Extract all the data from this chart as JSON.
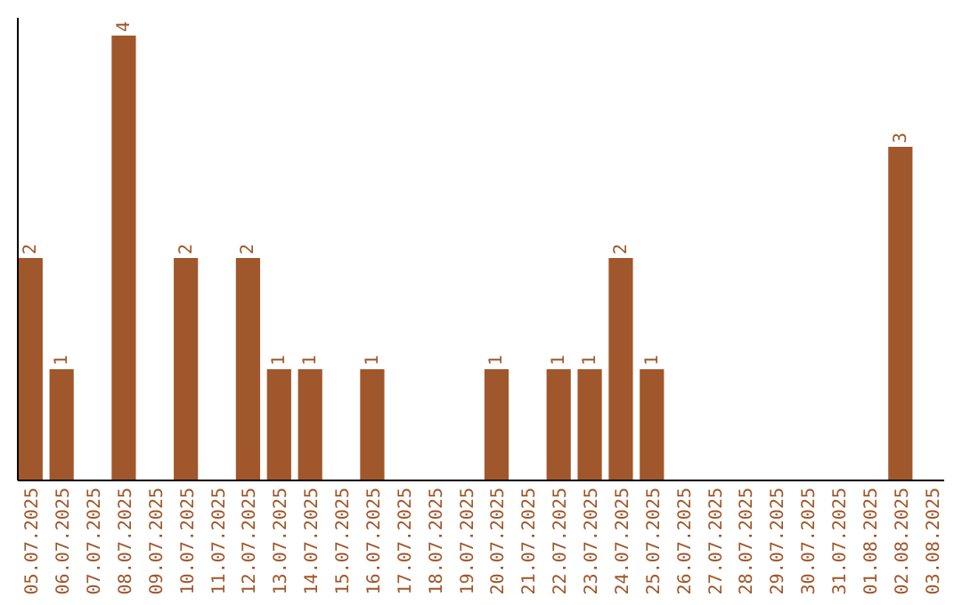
{
  "chart_data": {
    "type": "bar",
    "categories": [
      "05.07.2025",
      "06.07.2025",
      "07.07.2025",
      "08.07.2025",
      "09.07.2025",
      "10.07.2025",
      "11.07.2025",
      "12.07.2025",
      "13.07.2025",
      "14.07.2025",
      "15.07.2025",
      "16.07.2025",
      "17.07.2025",
      "18.07.2025",
      "19.07.2025",
      "20.07.2025",
      "21.07.2025",
      "22.07.2025",
      "23.07.2025",
      "24.07.2025",
      "25.07.2025",
      "26.07.2025",
      "27.07.2025",
      "28.07.2025",
      "29.07.2025",
      "30.07.2025",
      "31.07.2025",
      "01.08.2025",
      "02.08.2025",
      "03.08.2025"
    ],
    "values": [
      2,
      1,
      0,
      4,
      0,
      2,
      0,
      2,
      1,
      1,
      0,
      1,
      0,
      0,
      0,
      1,
      0,
      1,
      1,
      2,
      1,
      0,
      0,
      0,
      0,
      0,
      0,
      0,
      3,
      0
    ],
    "value_labels": [
      "2",
      "1",
      null,
      "4",
      null,
      "2",
      null,
      "2",
      "1",
      "1",
      null,
      "1",
      null,
      null,
      null,
      "1",
      null,
      "1",
      "1",
      "2",
      "1",
      null,
      null,
      null,
      null,
      null,
      null,
      null,
      "3",
      null
    ],
    "color": "#a0572b"
  }
}
